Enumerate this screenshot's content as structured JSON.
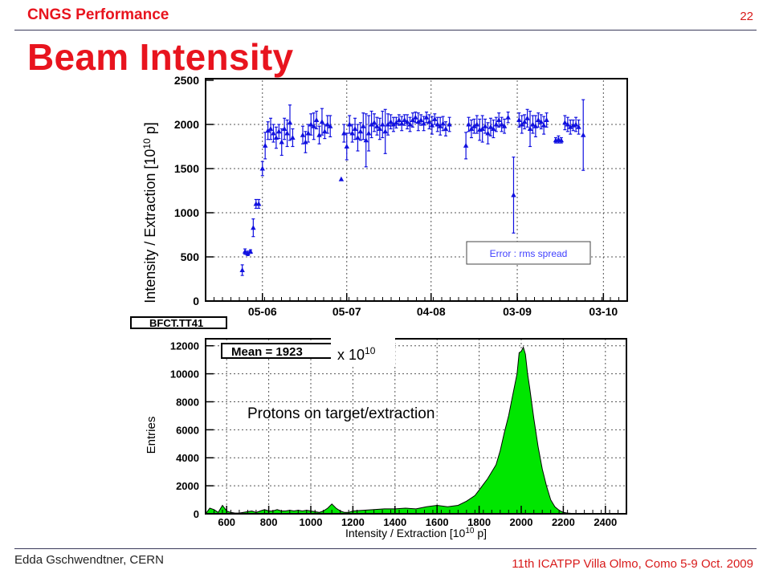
{
  "header": {
    "title": "CNGS Performance",
    "page_number": "22"
  },
  "slide_title": "Beam Intensity",
  "footer": {
    "left": "Edda Gschwendtner, CERN",
    "right": "11th ICATPP Villa Olmo, Como 5-9 Oct. 2009"
  },
  "colors": {
    "accent": "#e8141e",
    "series_blue": "#1010e0",
    "histogram_fill": "#00e600"
  },
  "chart_data": [
    {
      "type": "scatter",
      "title": "",
      "ylabel": "Intensity / Extraction [10^10 p]",
      "ylabel_parts": [
        "Intensity / Extraction [10",
        "10",
        " p]"
      ],
      "xlabel": "",
      "ylim": [
        0,
        2500
      ],
      "yticks": [
        "0",
        "500",
        "1000",
        "1500",
        "2000",
        "2500"
      ],
      "xtick_labels": [
        "05-06",
        "05-07",
        "04-08",
        "03-09",
        "03-10"
      ],
      "xtick_positions_days": [
        31,
        77,
        123,
        170,
        217
      ],
      "xlim_days": [
        0,
        230
      ],
      "grid": true,
      "legend_label": "BFCT.TT41",
      "annotation": "Error : rms spread",
      "marker": "triangle",
      "series": [
        {
          "points": [
            {
              "x": 20,
              "y": 350,
              "e": 60
            },
            {
              "x": 21.5,
              "y": 560,
              "e": 30
            },
            {
              "x": 23,
              "y": 540,
              "e": 25
            },
            {
              "x": 24.5,
              "y": 560,
              "e": 20
            },
            {
              "x": 26,
              "y": 830,
              "e": 100
            },
            {
              "x": 27.5,
              "y": 1100,
              "e": 50
            },
            {
              "x": 29,
              "y": 1100,
              "e": 50
            },
            {
              "x": 31,
              "y": 1500,
              "e": 80
            },
            {
              "x": 32.5,
              "y": 1760,
              "e": 150
            },
            {
              "x": 34,
              "y": 1930,
              "e": 100
            },
            {
              "x": 35.5,
              "y": 1950,
              "e": 120
            },
            {
              "x": 37,
              "y": 1900,
              "e": 100
            },
            {
              "x": 38.5,
              "y": 1850,
              "e": 120
            },
            {
              "x": 40,
              "y": 1920,
              "e": 80
            },
            {
              "x": 41.5,
              "y": 1800,
              "e": 150
            },
            {
              "x": 43,
              "y": 1950,
              "e": 120
            },
            {
              "x": 44.5,
              "y": 1900,
              "e": 150
            },
            {
              "x": 46,
              "y": 2020,
              "e": 200
            },
            {
              "x": 47.5,
              "y": 1850,
              "e": 100
            },
            {
              "x": 53,
              "y": 1880,
              "e": 100
            },
            {
              "x": 54.5,
              "y": 1800,
              "e": 120
            },
            {
              "x": 56,
              "y": 1900,
              "e": 100
            },
            {
              "x": 57.5,
              "y": 2000,
              "e": 120
            },
            {
              "x": 59,
              "y": 1980,
              "e": 150
            },
            {
              "x": 60.5,
              "y": 2050,
              "e": 100
            },
            {
              "x": 62,
              "y": 1880,
              "e": 100
            },
            {
              "x": 63.5,
              "y": 2030,
              "e": 150
            },
            {
              "x": 65,
              "y": 1920,
              "e": 80
            },
            {
              "x": 66.5,
              "y": 2000,
              "e": 100
            },
            {
              "x": 68,
              "y": 1980,
              "e": 120
            },
            {
              "x": 74,
              "y": 1380,
              "e": 0
            },
            {
              "x": 75.5,
              "y": 1900,
              "e": 100
            },
            {
              "x": 77,
              "y": 1750,
              "e": 150
            },
            {
              "x": 78.5,
              "y": 2000,
              "e": 100
            },
            {
              "x": 80,
              "y": 1900,
              "e": 100
            },
            {
              "x": 81.5,
              "y": 1950,
              "e": 120
            },
            {
              "x": 83,
              "y": 1850,
              "e": 150
            },
            {
              "x": 84.5,
              "y": 1920,
              "e": 100
            },
            {
              "x": 86,
              "y": 1980,
              "e": 150
            },
            {
              "x": 87.5,
              "y": 1820,
              "e": 300
            },
            {
              "x": 89,
              "y": 1900,
              "e": 200
            },
            {
              "x": 90.5,
              "y": 2000,
              "e": 150
            },
            {
              "x": 92,
              "y": 2020,
              "e": 100
            },
            {
              "x": 93.5,
              "y": 1980,
              "e": 100
            },
            {
              "x": 95,
              "y": 1950,
              "e": 120
            },
            {
              "x": 96.5,
              "y": 2000,
              "e": 150
            },
            {
              "x": 98,
              "y": 1920,
              "e": 250
            },
            {
              "x": 99.5,
              "y": 2000,
              "e": 120
            },
            {
              "x": 101,
              "y": 2030,
              "e": 80
            },
            {
              "x": 102.5,
              "y": 2000,
              "e": 80
            },
            {
              "x": 104,
              "y": 2020,
              "e": 60
            },
            {
              "x": 105.5,
              "y": 2050,
              "e": 60
            },
            {
              "x": 107,
              "y": 2010,
              "e": 80
            },
            {
              "x": 108.5,
              "y": 2050,
              "e": 60
            },
            {
              "x": 110,
              "y": 2030,
              "e": 80
            },
            {
              "x": 111.5,
              "y": 2000,
              "e": 80
            },
            {
              "x": 113,
              "y": 2050,
              "e": 80
            },
            {
              "x": 114.5,
              "y": 2080,
              "e": 60
            },
            {
              "x": 116,
              "y": 2030,
              "e": 100
            },
            {
              "x": 117.5,
              "y": 2050,
              "e": 60
            },
            {
              "x": 119,
              "y": 2010,
              "e": 80
            },
            {
              "x": 120.5,
              "y": 2080,
              "e": 60
            },
            {
              "x": 122,
              "y": 2030,
              "e": 80
            },
            {
              "x": 123.5,
              "y": 1990,
              "e": 100
            },
            {
              "x": 125,
              "y": 2060,
              "e": 60
            },
            {
              "x": 126.5,
              "y": 2000,
              "e": 80
            },
            {
              "x": 128,
              "y": 1980,
              "e": 100
            },
            {
              "x": 129.5,
              "y": 2010,
              "e": 80
            },
            {
              "x": 131,
              "y": 1950,
              "e": 80
            },
            {
              "x": 133,
              "y": 2000,
              "e": 80
            },
            {
              "x": 142,
              "y": 1760,
              "e": 150
            },
            {
              "x": 143.5,
              "y": 2000,
              "e": 80
            },
            {
              "x": 145,
              "y": 1950,
              "e": 100
            },
            {
              "x": 146.5,
              "y": 1980,
              "e": 80
            },
            {
              "x": 148,
              "y": 2000,
              "e": 100
            },
            {
              "x": 149.5,
              "y": 1940,
              "e": 120
            },
            {
              "x": 151,
              "y": 1950,
              "e": 150
            },
            {
              "x": 152.5,
              "y": 1980,
              "e": 80
            },
            {
              "x": 154,
              "y": 1900,
              "e": 120
            },
            {
              "x": 155.5,
              "y": 1970,
              "e": 100
            },
            {
              "x": 157,
              "y": 1950,
              "e": 100
            },
            {
              "x": 158.5,
              "y": 2000,
              "e": 80
            },
            {
              "x": 160,
              "y": 2050,
              "e": 80
            },
            {
              "x": 161.5,
              "y": 2000,
              "e": 80
            },
            {
              "x": 163,
              "y": 1980,
              "e": 80
            },
            {
              "x": 165,
              "y": 2080,
              "e": 60
            },
            {
              "x": 168,
              "y": 1200,
              "e": 430
            },
            {
              "x": 171,
              "y": 2050,
              "e": 80
            },
            {
              "x": 172.5,
              "y": 2000,
              "e": 100
            },
            {
              "x": 174,
              "y": 2030,
              "e": 80
            },
            {
              "x": 175.5,
              "y": 2070,
              "e": 100
            },
            {
              "x": 177,
              "y": 1950,
              "e": 200
            },
            {
              "x": 178.5,
              "y": 2000,
              "e": 100
            },
            {
              "x": 180,
              "y": 1980,
              "e": 120
            },
            {
              "x": 181.5,
              "y": 2050,
              "e": 80
            },
            {
              "x": 183,
              "y": 2030,
              "e": 80
            },
            {
              "x": 184.5,
              "y": 1990,
              "e": 100
            },
            {
              "x": 186,
              "y": 2050,
              "e": 80
            },
            {
              "x": 191,
              "y": 1820,
              "e": 30
            },
            {
              "x": 192.5,
              "y": 1830,
              "e": 40
            },
            {
              "x": 194,
              "y": 1820,
              "e": 30
            },
            {
              "x": 196,
              "y": 2020,
              "e": 80
            },
            {
              "x": 197.5,
              "y": 2000,
              "e": 80
            },
            {
              "x": 199,
              "y": 1970,
              "e": 80
            },
            {
              "x": 200.5,
              "y": 1990,
              "e": 60
            },
            {
              "x": 202,
              "y": 2000,
              "e": 80
            },
            {
              "x": 203.5,
              "y": 1970,
              "e": 80
            },
            {
              "x": 206,
              "y": 1880,
              "e": 400
            }
          ]
        }
      ]
    },
    {
      "type": "area",
      "title": "",
      "xlabel": "Intensity / Extraction [10^10 p]",
      "xlabel_parts": [
        "Intensity / Extraction [10",
        "10",
        " p]"
      ],
      "ylabel": "Entries",
      "xlim": [
        500,
        2500
      ],
      "ylim": [
        0,
        12500
      ],
      "xticks": [
        "600",
        "800",
        "1000",
        "1200",
        "1400",
        "1600",
        "1800",
        "2000",
        "2200",
        "2400"
      ],
      "yticks": [
        "0",
        "2000",
        "4000",
        "6000",
        "8000",
        "10000",
        "12000"
      ],
      "grid": true,
      "stat_box": "Mean = 1923",
      "unit_note_parts": [
        "x 10",
        "10"
      ],
      "annotation": "Protons on target/extraction",
      "x": [
        500,
        520,
        540,
        560,
        580,
        600,
        620,
        640,
        660,
        680,
        700,
        720,
        740,
        760,
        780,
        800,
        820,
        840,
        860,
        880,
        900,
        920,
        940,
        960,
        980,
        1000,
        1020,
        1040,
        1060,
        1080,
        1100,
        1120,
        1140,
        1160,
        1180,
        1200,
        1250,
        1300,
        1350,
        1400,
        1450,
        1500,
        1550,
        1600,
        1650,
        1700,
        1740,
        1780,
        1800,
        1820,
        1840,
        1860,
        1880,
        1900,
        1920,
        1940,
        1960,
        1980,
        1990,
        2000,
        2010,
        2020,
        2030,
        2040,
        2060,
        2080,
        2100,
        2120,
        2140,
        2160,
        2180,
        2200,
        2220,
        2250,
        2300
      ],
      "values": [
        0,
        400,
        300,
        100,
        600,
        200,
        100,
        50,
        50,
        100,
        150,
        200,
        100,
        200,
        300,
        200,
        200,
        300,
        200,
        200,
        250,
        200,
        250,
        200,
        250,
        200,
        150,
        100,
        200,
        400,
        700,
        400,
        200,
        100,
        100,
        200,
        250,
        300,
        350,
        350,
        400,
        350,
        500,
        600,
        500,
        600,
        900,
        1300,
        1700,
        2100,
        2500,
        3000,
        3500,
        4500,
        5800,
        7000,
        8500,
        10000,
        11500,
        11600,
        11900,
        11400,
        10000,
        9000,
        6800,
        4800,
        3200,
        2000,
        1000,
        500,
        250,
        100,
        50,
        20,
        0
      ]
    }
  ]
}
